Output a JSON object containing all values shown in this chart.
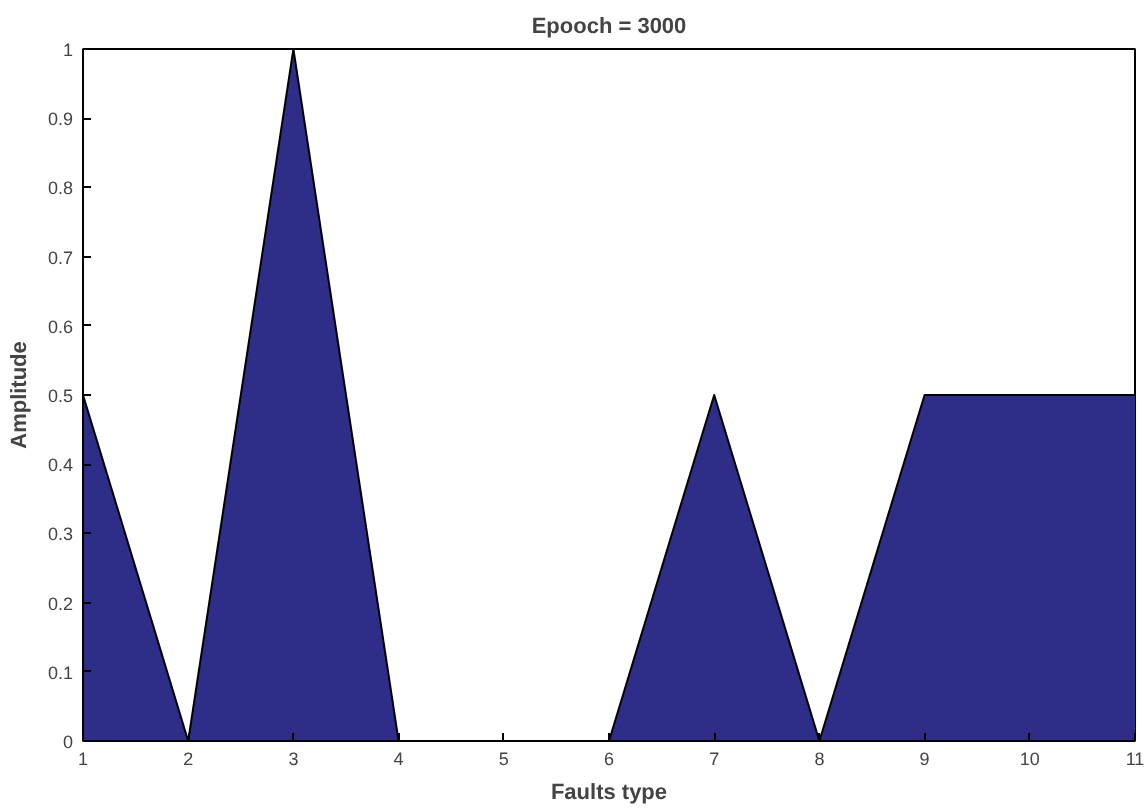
{
  "chart_data": {
    "type": "area",
    "title": "Epooch = 3000",
    "xlabel": "Faults type",
    "ylabel": "Amplitude",
    "x": [
      1,
      2,
      3,
      4,
      5,
      6,
      7,
      8,
      9,
      10,
      11
    ],
    "series": [
      {
        "color": "#2e2d87",
        "values": [
          0.5,
          0,
          1,
          0,
          0,
          0,
          0.5,
          0,
          0.5,
          0.5,
          0.5
        ]
      }
    ],
    "xlim": [
      1,
      11
    ],
    "xticks": [
      1,
      2,
      3,
      4,
      5,
      6,
      7,
      8,
      9,
      10,
      11
    ],
    "ylim": [
      0,
      1
    ],
    "yticks": [
      0,
      0.1,
      0.2,
      0.3,
      0.4,
      0.5,
      0.6,
      0.7,
      0.8,
      0.9,
      1
    ],
    "grid": false
  }
}
